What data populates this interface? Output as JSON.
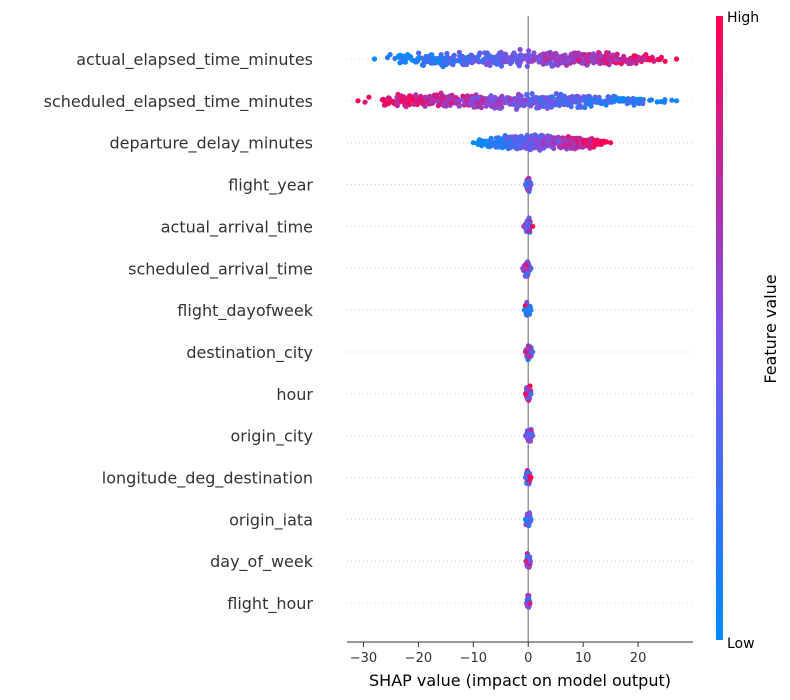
{
  "chart_data": {
    "type": "scatter",
    "subtype": "shap-beeswarm",
    "title": "",
    "xlabel": "SHAP value (impact on model output)",
    "xlim": [
      -33,
      30
    ],
    "xticks": [
      -30,
      -20,
      -10,
      0,
      10,
      20
    ],
    "features": [
      {
        "name": "actual_elapsed_time_minutes",
        "min": -28,
        "max": 27,
        "min_color": "low",
        "max_color": "high"
      },
      {
        "name": "scheduled_elapsed_time_minutes",
        "min": -31,
        "max": 27,
        "min_color": "high",
        "max_color": "low"
      },
      {
        "name": "departure_delay_minutes",
        "min": -10,
        "max": 15,
        "min_color": "low",
        "max_color": "high"
      },
      {
        "name": "flight_year",
        "min": -0.5,
        "max": 0.5
      },
      {
        "name": "actual_arrival_time",
        "min": -0.8,
        "max": 0.8
      },
      {
        "name": "scheduled_arrival_time",
        "min": -1,
        "max": 0.5
      },
      {
        "name": "flight_dayofweek",
        "min": -0.7,
        "max": 0.5
      },
      {
        "name": "destination_city",
        "min": -0.5,
        "max": 0.8
      },
      {
        "name": "hour",
        "min": -0.5,
        "max": 0.5
      },
      {
        "name": "origin_city",
        "min": -0.5,
        "max": 0.8
      },
      {
        "name": "longitude_deg_destination",
        "min": -0.5,
        "max": 0.5
      },
      {
        "name": "origin_iata",
        "min": -0.5,
        "max": 0.5
      },
      {
        "name": "day_of_week",
        "min": -0.4,
        "max": 0.4
      },
      {
        "name": "flight_hour",
        "min": -0.3,
        "max": 0.3
      }
    ],
    "colorbar": {
      "label": "Feature value",
      "high_label": "High",
      "low_label": "Low",
      "high_color": "#ff0052",
      "low_color": "#008bfb"
    },
    "grid": false
  }
}
